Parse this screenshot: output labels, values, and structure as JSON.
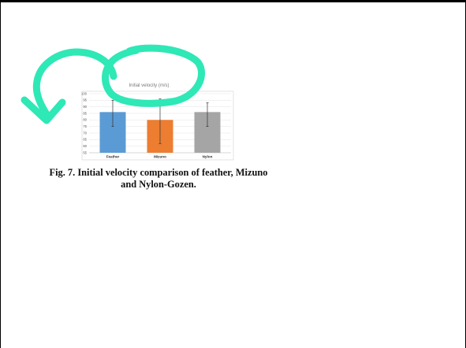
{
  "caption": {
    "line1": "Fig. 7. Initial velocity comparison of feather, Mizuno",
    "line2": "and Nylon-Gozen."
  },
  "chart_data": {
    "type": "bar",
    "title": "Initial velocity (m/s)",
    "categories": [
      "Feather",
      "Mizuno",
      "Nylon"
    ],
    "values": [
      86,
      80,
      86
    ],
    "error_low": [
      75,
      62,
      75
    ],
    "error_high": [
      95,
      96,
      93
    ],
    "ylim": [
      55,
      100
    ],
    "yticks": [
      55,
      60,
      65,
      70,
      75,
      80,
      85,
      90,
      95,
      100
    ],
    "xlabel": "",
    "ylabel": "",
    "grid": true,
    "bar_colors": [
      "#5b9bd5",
      "#ed7d31",
      "#a5a5a5"
    ]
  },
  "annotation": {
    "color": "#2ee8b6",
    "shapes": [
      "hand-drawn-circle",
      "curved-arrow"
    ]
  }
}
